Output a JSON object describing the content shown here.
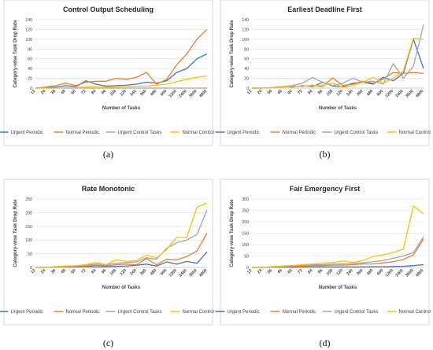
{
  "colors": {
    "Urgent Periodic": "#4472c4",
    "Normal Periodic": "#ed7d31",
    "Urgent Control Tasks": "#a5a5a5",
    "Normal Control": "#ffc000"
  },
  "chart_data": [
    {
      "type": "line",
      "caption": "(a)",
      "title": "Control Output Scheduling",
      "xlabel": "Number of Tasks",
      "ylabel": "Category-wise Task Drop Rate",
      "ylim": [
        0,
        140
      ],
      "yticks": [
        0,
        20,
        40,
        60,
        80,
        100,
        120,
        140
      ],
      "grid": true,
      "legend": "bottom",
      "categories": [
        "12",
        "24",
        "36",
        "48",
        "60",
        "72",
        "84",
        "96",
        "108",
        "120",
        "240",
        "360",
        "480",
        "600",
        "1200",
        "2400",
        "3600",
        "4800"
      ],
      "series": [
        {
          "name": "Urgent Periodic",
          "values": [
            0,
            1,
            2,
            5,
            3,
            15,
            8,
            4,
            5,
            6,
            8,
            12,
            10,
            15,
            32,
            40,
            60,
            70
          ]
        },
        {
          "name": "Normal Periodic",
          "values": [
            0,
            2,
            5,
            10,
            5,
            12,
            14,
            14,
            20,
            18,
            22,
            32,
            8,
            18,
            48,
            70,
            100,
            120
          ]
        },
        {
          "name": "Urgent Control Tasks",
          "values": [
            0,
            0,
            0,
            0,
            0,
            0,
            0,
            0,
            0,
            0,
            0,
            0,
            0,
            0,
            0,
            0,
            0,
            0
          ]
        },
        {
          "name": "Normal Control",
          "values": [
            0,
            0,
            0,
            1,
            1,
            2,
            3,
            2,
            2,
            3,
            4,
            4,
            6,
            8,
            13,
            18,
            22,
            25
          ]
        }
      ]
    },
    {
      "type": "line",
      "caption": "(b)",
      "title": "Earliest Deadline First",
      "xlabel": "Number of Tasks",
      "ylabel": "Category-wise Task Drop Rate",
      "ylim": [
        0,
        140
      ],
      "yticks": [
        0,
        20,
        40,
        60,
        80,
        100,
        120,
        140
      ],
      "grid": true,
      "legend": "bottom",
      "categories": [
        "12",
        "24",
        "36",
        "48",
        "60",
        "72",
        "84",
        "96",
        "108",
        "120",
        "240",
        "360",
        "480",
        "600",
        "1200",
        "2400",
        "3600",
        "4800"
      ],
      "series": [
        {
          "name": "Urgent Periodic",
          "values": [
            0,
            0,
            1,
            3,
            2,
            5,
            3,
            12,
            4,
            3,
            10,
            12,
            8,
            22,
            15,
            30,
            100,
            40
          ]
        },
        {
          "name": "Normal Periodic",
          "values": [
            0,
            0,
            1,
            2,
            4,
            3,
            6,
            3,
            21,
            5,
            8,
            14,
            10,
            18,
            32,
            30,
            32,
            30
          ]
        },
        {
          "name": "Urgent Control Tasks",
          "values": [
            0,
            0,
            1,
            3,
            5,
            10,
            22,
            12,
            5,
            10,
            20,
            12,
            14,
            8,
            50,
            20,
            45,
            130
          ]
        },
        {
          "name": "Normal Control",
          "values": [
            0,
            0,
            1,
            2,
            3,
            4,
            5,
            6,
            10,
            2,
            5,
            12,
            22,
            10,
            20,
            35,
            102,
            100
          ]
        }
      ]
    },
    {
      "type": "line",
      "caption": "(c)",
      "title": "Rate Monotonic",
      "xlabel": "Number of Tasks",
      "ylabel": "Category-wise Task Drop Rate",
      "ylim": [
        0,
        250
      ],
      "yticks": [
        0,
        50,
        100,
        150,
        200,
        250
      ],
      "grid": true,
      "legend": "bottom",
      "categories": [
        "12",
        "24",
        "36",
        "48",
        "60",
        "72",
        "84",
        "96",
        "108",
        "120",
        "240",
        "360",
        "480",
        "600",
        "1200",
        "2400",
        "3600",
        "4800"
      ],
      "series": [
        {
          "name": "Urgent Periodic",
          "values": [
            0,
            0,
            1,
            2,
            2,
            3,
            2,
            3,
            4,
            5,
            8,
            12,
            5,
            20,
            12,
            22,
            15,
            57
          ]
        },
        {
          "name": "Normal Periodic",
          "values": [
            0,
            0,
            2,
            3,
            4,
            5,
            8,
            6,
            10,
            12,
            10,
            32,
            10,
            30,
            28,
            40,
            60,
            125
          ]
        },
        {
          "name": "Urgent Control Tasks",
          "values": [
            0,
            0,
            2,
            4,
            5,
            8,
            12,
            10,
            15,
            18,
            20,
            35,
            30,
            70,
            90,
            100,
            120,
            210
          ]
        },
        {
          "name": "Normal Control",
          "values": [
            0,
            0,
            3,
            5,
            6,
            10,
            18,
            10,
            28,
            22,
            25,
            45,
            35,
            65,
            110,
            110,
            220,
            235
          ]
        }
      ]
    },
    {
      "type": "line",
      "caption": "(d)",
      "title": "Fair Emergency First",
      "xlabel": "Number of Tasks",
      "ylabel": "Category-wise Task Drop Rate",
      "ylim": [
        0,
        300
      ],
      "yticks": [
        0,
        50,
        100,
        150,
        200,
        250,
        300
      ],
      "grid": true,
      "legend": "bottom",
      "categories": [
        "12",
        "24",
        "36",
        "48",
        "60",
        "72",
        "84",
        "96",
        "108",
        "120",
        "240",
        "360",
        "480",
        "600",
        "1200",
        "2400",
        "3600",
        "4800"
      ],
      "series": [
        {
          "name": "Urgent Periodic",
          "values": [
            0,
            0,
            1,
            1,
            1,
            2,
            2,
            2,
            2,
            2,
            2,
            2,
            3,
            3,
            4,
            5,
            8,
            12
          ]
        },
        {
          "name": "Normal Periodic",
          "values": [
            0,
            0,
            2,
            3,
            5,
            6,
            8,
            8,
            10,
            10,
            12,
            15,
            15,
            20,
            25,
            35,
            55,
            125
          ]
        },
        {
          "name": "Urgent Control Tasks",
          "values": [
            0,
            0,
            3,
            5,
            8,
            10,
            12,
            12,
            15,
            15,
            18,
            20,
            25,
            30,
            40,
            50,
            65,
            135
          ]
        },
        {
          "name": "Normal Control",
          "values": [
            0,
            0,
            4,
            6,
            8,
            12,
            15,
            18,
            22,
            28,
            22,
            30,
            48,
            55,
            65,
            80,
            270,
            235
          ]
        }
      ]
    }
  ]
}
